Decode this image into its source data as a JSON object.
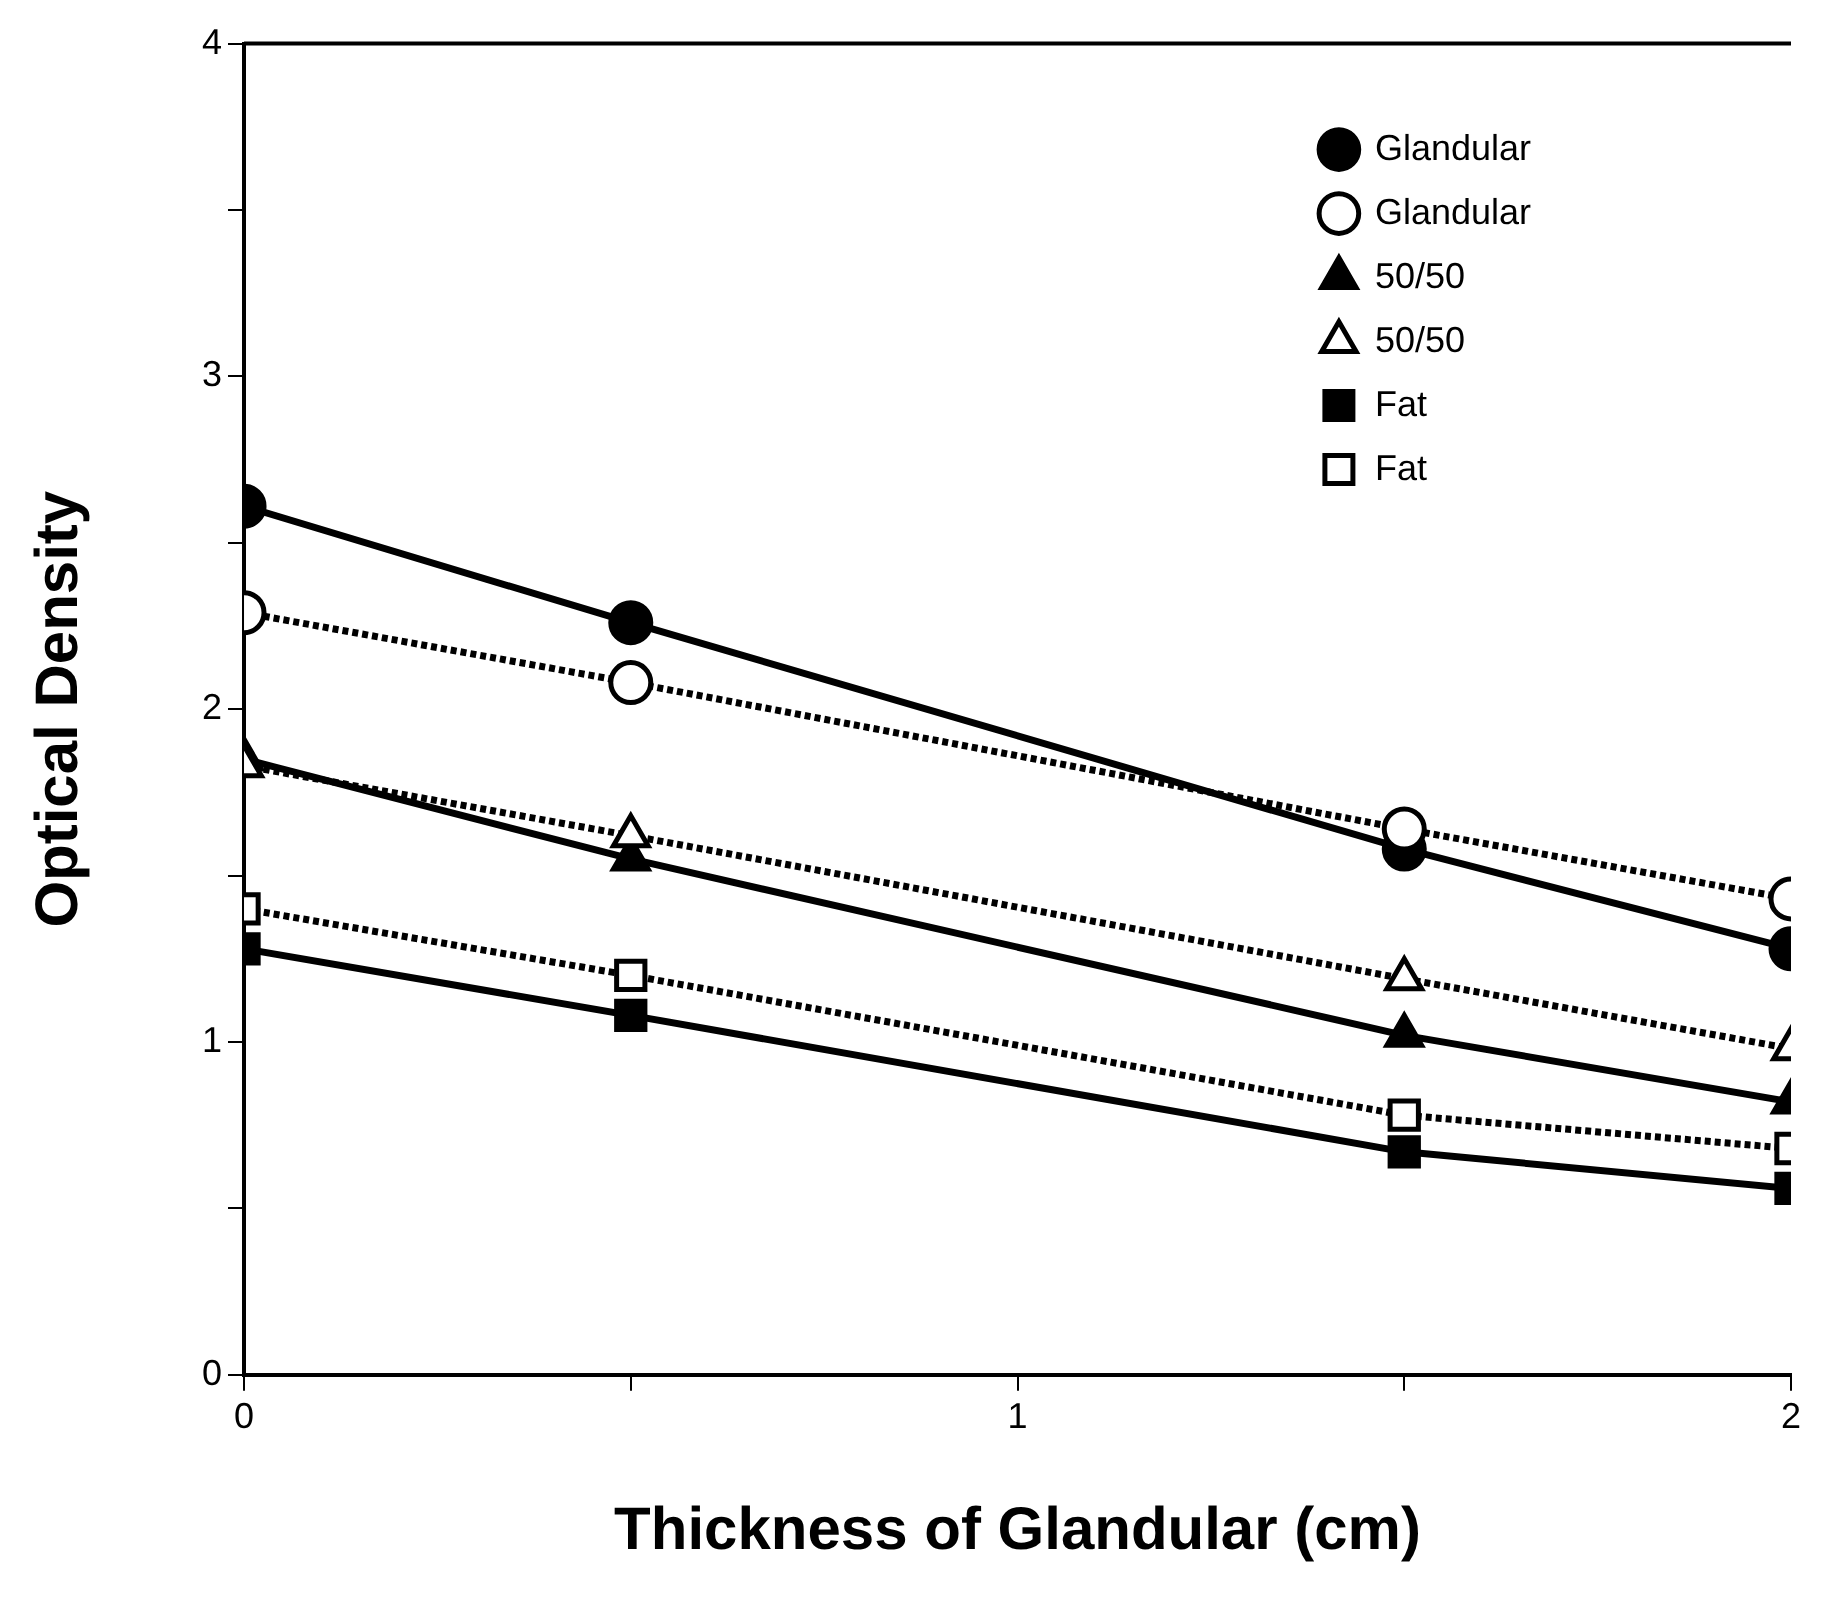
{
  "chart_data": {
    "type": "line",
    "xlabel": "Thickness of Glandular (cm)",
    "ylabel": "Optical Density",
    "x": [
      0,
      0.5,
      1.5,
      2
    ],
    "xlim": [
      0,
      2
    ],
    "xticks": [
      0,
      {
        "value": 0.5,
        "label": null
      },
      1,
      {
        "value": 1.5,
        "label": null
      },
      2
    ],
    "ylim": [
      0,
      4
    ],
    "yticks": [
      0,
      {
        "value": 0.5,
        "label": null
      },
      1,
      {
        "value": 1.5,
        "label": null
      },
      2,
      {
        "value": 2.5,
        "label": null
      },
      3,
      {
        "value": 3.5,
        "label": null
      },
      4
    ],
    "grid": false,
    "legend": "top right",
    "series": [
      {
        "name": "Glandular",
        "color": "#000000",
        "marker": "circle",
        "line_style": "solid",
        "values": [
          2.61,
          2.26,
          1.58,
          1.28
        ]
      },
      {
        "name": "Glandular",
        "color": "#000000",
        "marker": "circle",
        "line_style": "dotted",
        "values": [
          2.29,
          2.08,
          1.64,
          1.43
        ]
      },
      {
        "name": "50/50",
        "color": "#000000",
        "marker": "triangle",
        "line_style": "solid",
        "values": [
          1.85,
          1.55,
          1.02,
          0.82
        ]
      },
      {
        "name": "50/50",
        "color": "#000000",
        "marker": "triangle",
        "line_style": "dotted",
        "values": [
          1.83,
          1.62,
          1.19,
          0.98
        ]
      },
      {
        "name": "Fat",
        "color": "#000000",
        "marker": "square",
        "line_style": "solid",
        "values": [
          1.28,
          1.08,
          0.67,
          0.56
        ]
      },
      {
        "name": "Fat",
        "color": "#000000",
        "marker": "square",
        "line_style": "dotted",
        "values": [
          1.4,
          1.2,
          0.78,
          0.68
        ]
      }
    ]
  }
}
